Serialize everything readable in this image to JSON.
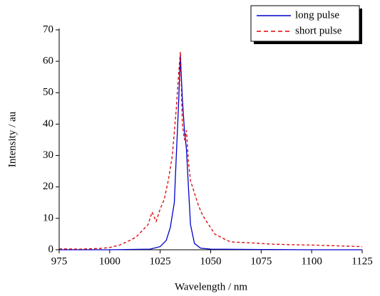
{
  "chart_data": {
    "type": "line",
    "xlabel": "Wavelength / nm",
    "ylabel": "Intensity / au",
    "xlim": [
      975,
      1125
    ],
    "xticks": [
      975,
      1000,
      1025,
      1050,
      1075,
      1100,
      1125
    ],
    "ylim": [
      0,
      70
    ],
    "yticks": [
      0,
      10,
      20,
      30,
      40,
      50,
      60,
      70
    ],
    "legend": "upper right",
    "series": [
      {
        "name": "long pulse",
        "color": "#0000cc",
        "dash": false,
        "x": [
          975,
          1000,
          1020,
          1025,
          1028,
          1030,
          1032,
          1033,
          1034,
          1035,
          1036,
          1037,
          1038,
          1039,
          1040,
          1042,
          1045,
          1050,
          1075,
          1100,
          1125
        ],
        "values": [
          0,
          0,
          0.2,
          1,
          3,
          7,
          15,
          30,
          45,
          62,
          48,
          38,
          32,
          20,
          8,
          2,
          0.5,
          0.2,
          0.1,
          0,
          0
        ]
      },
      {
        "name": "short pulse",
        "color": "#dd0000",
        "dash": true,
        "x": [
          975,
          985,
          995,
          1000,
          1005,
          1010,
          1013,
          1016,
          1019,
          1021,
          1023,
          1025,
          1027,
          1029,
          1031,
          1033,
          1034,
          1035,
          1036,
          1037,
          1038,
          1039,
          1040,
          1042,
          1044,
          1046,
          1048,
          1050,
          1052,
          1055,
          1058,
          1060,
          1070,
          1080,
          1090,
          1100,
          1110,
          1125
        ],
        "values": [
          0.3,
          0.2,
          0.4,
          0.7,
          1.5,
          3,
          4,
          6,
          8,
          12,
          9,
          13,
          16,
          22,
          30,
          45,
          55,
          63,
          40,
          35,
          38,
          28,
          22,
          18,
          14,
          11,
          9,
          7,
          5,
          4,
          3,
          2.5,
          2.2,
          1.8,
          1.6,
          1.5,
          1.3,
          1
        ]
      }
    ]
  }
}
